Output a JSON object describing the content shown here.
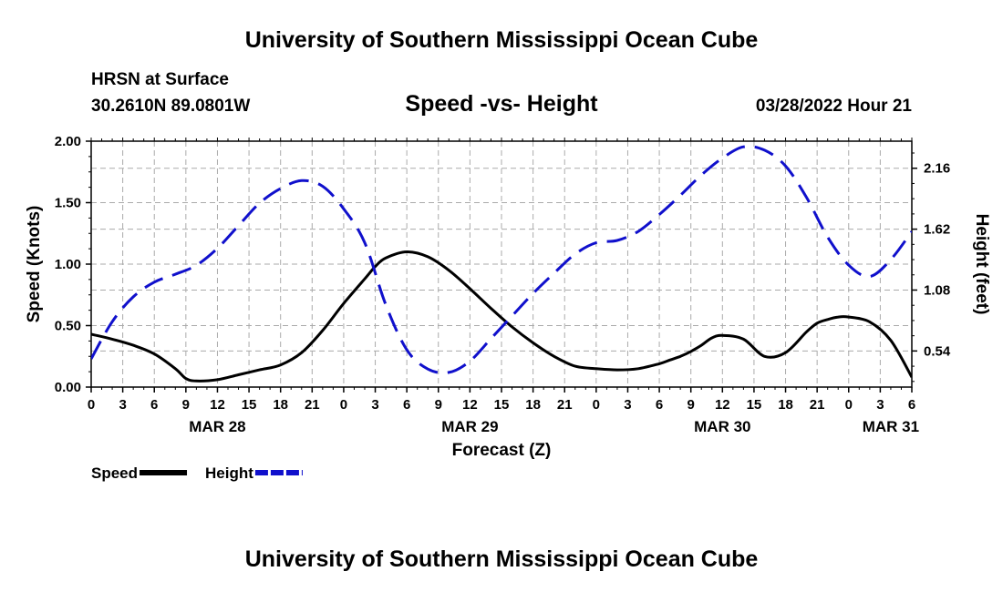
{
  "header": {
    "title": "University of Southern Mississippi Ocean Cube",
    "station": "HRSN at Surface",
    "coords": "30.2610N  89.0801W",
    "subtitle": "Speed -vs- Height",
    "datetime": "03/28/2022 Hour 21"
  },
  "footer": {
    "title": "University of Southern Mississippi Ocean Cube"
  },
  "chart_data": {
    "type": "line",
    "title": "Speed -vs- Height",
    "xlabel": "Forecast (Z)",
    "ylabel_left": "Speed (Knots)",
    "ylabel_right": "Height (feet)",
    "x_hours_range": [
      0,
      78
    ],
    "x_tick_labels": [
      "0",
      "3",
      "6",
      "9",
      "12",
      "15",
      "18",
      "21",
      "0",
      "3",
      "6",
      "9",
      "12",
      "15",
      "18",
      "21",
      "0",
      "3",
      "6",
      "9",
      "12",
      "15",
      "18",
      "21",
      "0",
      "3",
      "6"
    ],
    "date_labels": [
      {
        "label": "MAR 28",
        "hour": 12
      },
      {
        "label": "MAR 29",
        "hour": 36
      },
      {
        "label": "MAR 30",
        "hour": 60
      },
      {
        "label": "MAR 31",
        "hour": 76
      }
    ],
    "ylim_left": [
      0,
      2.0
    ],
    "yticks_left": [
      0,
      0.5,
      1.0,
      1.5,
      2.0
    ],
    "ytick_labels_left": [
      "0.00",
      "0.50",
      "1.00",
      "1.50",
      "2.00"
    ],
    "ylim_right": [
      0.22,
      2.4
    ],
    "yticks_right": [
      0.54,
      1.08,
      1.62,
      2.16
    ],
    "ytick_labels_right": [
      "0.54",
      "1.08",
      "1.62",
      "2.16"
    ],
    "grid": true,
    "series": [
      {
        "name": "Speed",
        "axis": "left",
        "color": "#000000",
        "dash": "solid",
        "x": [
          0,
          2,
          4,
          6,
          8,
          9,
          10,
          12,
          14,
          16,
          18,
          20,
          22,
          24,
          26,
          27,
          28,
          30,
          32,
          34,
          36,
          38,
          40,
          42,
          44,
          46,
          48,
          50,
          52,
          54,
          55,
          56,
          57,
          58,
          59,
          60,
          62,
          64,
          66,
          68,
          69,
          70,
          71,
          72,
          74,
          76,
          78
        ],
        "y": [
          0.43,
          0.39,
          0.34,
          0.27,
          0.15,
          0.07,
          0.05,
          0.06,
          0.1,
          0.14,
          0.18,
          0.28,
          0.46,
          0.68,
          0.88,
          0.98,
          1.05,
          1.1,
          1.06,
          0.95,
          0.8,
          0.64,
          0.49,
          0.36,
          0.25,
          0.17,
          0.15,
          0.14,
          0.15,
          0.19,
          0.22,
          0.25,
          0.29,
          0.34,
          0.4,
          0.42,
          0.39,
          0.25,
          0.28,
          0.45,
          0.52,
          0.55,
          0.57,
          0.57,
          0.53,
          0.38,
          0.08
        ]
      },
      {
        "name": "Height",
        "axis": "right",
        "color": "#1010cc",
        "dash": "dashed",
        "x": [
          0,
          2,
          4,
          6,
          8,
          10,
          12,
          14,
          16,
          18,
          20,
          22,
          24,
          26,
          28,
          30,
          32,
          34,
          36,
          38,
          40,
          42,
          44,
          46,
          48,
          50,
          52,
          54,
          56,
          58,
          60,
          62,
          64,
          66,
          68,
          70,
          72,
          74,
          76,
          78
        ],
        "y": [
          0.47,
          0.8,
          1.02,
          1.15,
          1.22,
          1.3,
          1.45,
          1.65,
          1.85,
          1.98,
          2.05,
          2.0,
          1.8,
          1.5,
          0.95,
          0.55,
          0.38,
          0.35,
          0.45,
          0.65,
          0.85,
          1.05,
          1.23,
          1.4,
          1.5,
          1.52,
          1.6,
          1.75,
          1.92,
          2.1,
          2.25,
          2.35,
          2.32,
          2.18,
          1.9,
          1.55,
          1.3,
          1.2,
          1.35,
          1.6
        ]
      }
    ],
    "legend": {
      "placement": "bottom-left",
      "entries": [
        {
          "label": "Speed",
          "color": "#000000",
          "dash": "solid"
        },
        {
          "label": "Height",
          "color": "#1010cc",
          "dash": "dashed"
        }
      ]
    }
  }
}
